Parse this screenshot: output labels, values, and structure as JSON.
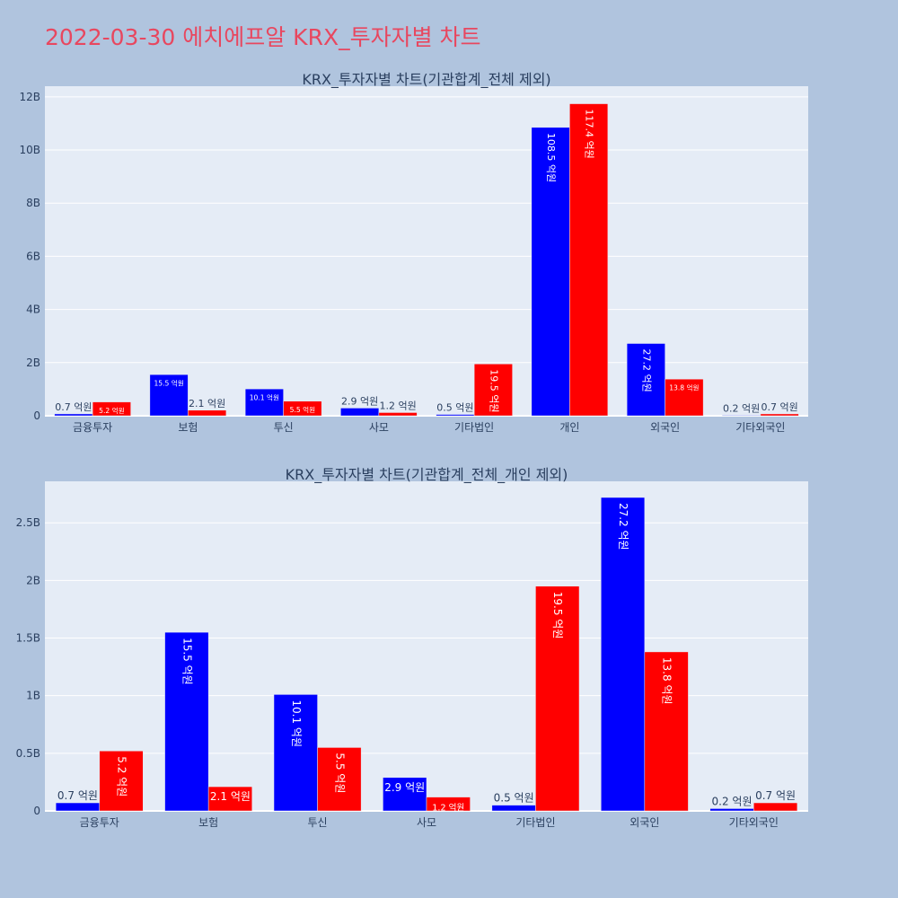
{
  "page_title": "2022-03-30 에치에프알 KRX_투자자별 차트",
  "colors": {
    "buy": "#0000ff",
    "sell": "#ff0000",
    "plot_bg": "#e5ecf6",
    "page_bg": "#b0c4de",
    "title": "#e8475f"
  },
  "chart_data": [
    {
      "type": "bar",
      "title": "KRX_투자자별 차트(기관합계_전체 제외)",
      "categories": [
        "금융투자",
        "보험",
        "투신",
        "사모",
        "기타법인",
        "개인",
        "외국인",
        "기타외국인"
      ],
      "series": [
        {
          "color": "#0000ff",
          "values": [
            70000000,
            1550000000,
            1010000000,
            290000000,
            50000000,
            10850000000,
            2720000000,
            20000000
          ],
          "labels": [
            "0.7 억원",
            "15.5 억원",
            "10.1 억원",
            "2.9 억원",
            "0.5 억원",
            "108.5 억원",
            "27.2 억원",
            "0.2 억원"
          ]
        },
        {
          "color": "#ff0000",
          "values": [
            520000000,
            210000000,
            550000000,
            120000000,
            1950000000,
            11740000000,
            1380000000,
            70000000
          ],
          "labels": [
            "5.2 억원",
            "2.1 억원",
            "5.5 억원",
            "1.2 억원",
            "19.5 억원",
            "117.4 억원",
            "13.8 억원",
            "0.7 억원"
          ]
        }
      ],
      "ylim": [
        0,
        12400000000
      ],
      "yticks": [
        0,
        2000000000,
        4000000000,
        6000000000,
        8000000000,
        10000000000,
        12000000000
      ],
      "ytick_labels": [
        "0",
        "2B",
        "4B",
        "6B",
        "8B",
        "10B",
        "12B"
      ],
      "grid": true
    },
    {
      "type": "bar",
      "title": "KRX_투자자별 차트(기관합계_전체_개인 제외)",
      "categories": [
        "금융투자",
        "보험",
        "투신",
        "사모",
        "기타법인",
        "외국인",
        "기타외국인"
      ],
      "series": [
        {
          "color": "#0000ff",
          "values": [
            70000000,
            1550000000,
            1010000000,
            290000000,
            50000000,
            2720000000,
            20000000
          ],
          "labels": [
            "0.7 억원",
            "15.5 억원",
            "10.1 억원",
            "2.9 억원",
            "0.5 억원",
            "27.2 억원",
            "0.2 억원"
          ]
        },
        {
          "color": "#ff0000",
          "values": [
            520000000,
            210000000,
            550000000,
            120000000,
            1950000000,
            1380000000,
            70000000
          ],
          "labels": [
            "5.2 억원",
            "2.1 억원",
            "5.5 억원",
            "1.2 억원",
            "19.5 억원",
            "13.8 억원",
            "0.7 억원"
          ]
        }
      ],
      "ylim": [
        0,
        2860000000
      ],
      "yticks": [
        0,
        500000000,
        1000000000,
        1500000000,
        2000000000,
        2500000000
      ],
      "ytick_labels": [
        "0",
        "0.5B",
        "1B",
        "1.5B",
        "2B",
        "2.5B"
      ],
      "grid": true
    }
  ]
}
